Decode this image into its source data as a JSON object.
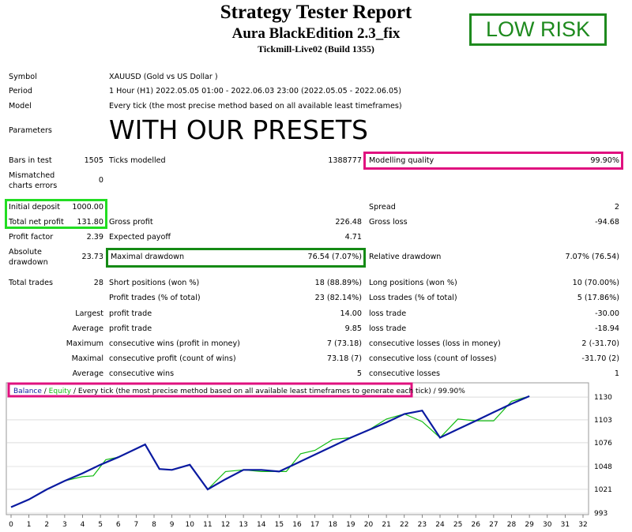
{
  "header": {
    "title": "Strategy Tester Report",
    "ea_name": "Aura BlackEdition 2.3_fix",
    "server": "Tickmill-Live02 (Build 1355)",
    "risk_badge": "LOW RISK"
  },
  "info": {
    "symbol_label": "Symbol",
    "symbol_value": "XAUUSD (Gold vs US Dollar )",
    "period_label": "Period",
    "period_value": "1 Hour (H1) 2022.05.05 01:00 - 2022.06.03 23:00 (2022.05.05 - 2022.06.05)",
    "model_label": "Model",
    "model_value": "Every tick (the most precise method based on all available least timeframes)",
    "parameters_label": "Parameters",
    "parameters_value": "WITH OUR PRESETS"
  },
  "stats": {
    "bars_label": "Bars in test",
    "bars_value": "1505",
    "ticks_label": "Ticks modelled",
    "ticks_value": "1388777",
    "quality_label": "Modelling quality",
    "quality_value": "99.90%",
    "mismatched_label1": "Mismatched",
    "mismatched_label2": "charts errors",
    "mismatched_value": "0",
    "deposit_label": "Initial deposit",
    "deposit_value": "1000.00",
    "spread_label": "Spread",
    "spread_value": "2",
    "net_label": "Total net profit",
    "net_value": "131.80",
    "gross_profit_label": "Gross profit",
    "gross_profit_value": "226.48",
    "gross_loss_label": "Gross loss",
    "gross_loss_value": "-94.68",
    "pf_label": "Profit factor",
    "pf_value": "2.39",
    "payoff_label": "Expected payoff",
    "payoff_value": "4.71",
    "absdd_label1": "Absolute",
    "absdd_label2": "drawdown",
    "absdd_value": "23.73",
    "maxdd_label": "Maximal drawdown",
    "maxdd_value": "76.54 (7.07%)",
    "reldd_label": "Relative drawdown",
    "reldd_value": "7.07% (76.54)",
    "trades_label": "Total trades",
    "trades_value": "28",
    "short_label": "Short positions (won %)",
    "short_value": "18 (88.89%)",
    "long_label": "Long positions (won %)",
    "long_value": "10 (70.00%)",
    "pt_label": "Profit trades (% of total)",
    "pt_value": "23 (82.14%)",
    "lt_label": "Loss trades (% of total)",
    "lt_value": "5 (17.86%)",
    "largest_label": "Largest",
    "lp_label": "profit trade",
    "lp_value": "14.00",
    "ll_label": "loss trade",
    "ll_value": "-30.00",
    "average_label": "Average",
    "ap_label": "profit trade",
    "ap_value": "9.85",
    "al_label": "loss trade",
    "al_value": "-18.94",
    "maximum_label": "Maximum",
    "mcw_label": "consecutive wins (profit in money)",
    "mcw_value": "7 (73.18)",
    "mcl_label": "consecutive losses (loss in money)",
    "mcl_value": "2 (-31.70)",
    "maximal_label": "Maximal",
    "mcp_label": "consecutive profit (count of wins)",
    "mcp_value": "73.18 (7)",
    "mcll_label": "consecutive loss (count of losses)",
    "mcll_value": "-31.70 (2)",
    "average2_label": "Average",
    "acw_label": "consecutive wins",
    "acw_value": "5",
    "acl_label": "consecutive losses",
    "acl_value": "1"
  },
  "chart_data": {
    "type": "line",
    "legend": {
      "balance": "Balance",
      "sep": " / ",
      "equity": "Equity",
      "rest": " / Every tick (the most precise method based on all available least timeframes to generate each tick) / 99.90%"
    },
    "x_ticks": [
      0,
      1,
      2,
      3,
      4,
      5,
      6,
      7,
      8,
      9,
      10,
      11,
      12,
      13,
      14,
      15,
      16,
      17,
      18,
      19,
      20,
      21,
      22,
      23,
      24,
      25,
      26,
      27,
      28,
      29,
      30,
      31,
      32
    ],
    "y_ticks": [
      993,
      1021,
      1048,
      1076,
      1103,
      1130
    ],
    "xlim": [
      0,
      32
    ],
    "ylim": [
      993,
      1144
    ],
    "colors": {
      "balance": "#0a1aa0",
      "equity": "#11bb11",
      "grid": "#c8c8c8"
    },
    "series": [
      {
        "name": "Balance",
        "points": [
          [
            0,
            1000
          ],
          [
            1,
            1009
          ],
          [
            2,
            1021
          ],
          [
            3,
            1031
          ],
          [
            4,
            1040
          ],
          [
            5,
            1050
          ],
          [
            6,
            1059
          ],
          [
            7,
            1069
          ],
          [
            7.5,
            1074
          ],
          [
            8.3,
            1045
          ],
          [
            9,
            1044
          ],
          [
            10,
            1050
          ],
          [
            11,
            1021
          ],
          [
            12,
            1033
          ],
          [
            13,
            1044
          ],
          [
            14,
            1044
          ],
          [
            15,
            1042
          ],
          [
            16,
            1052
          ],
          [
            17,
            1062
          ],
          [
            18,
            1072
          ],
          [
            19,
            1082
          ],
          [
            20,
            1091
          ],
          [
            21,
            1100
          ],
          [
            22,
            1110
          ],
          [
            23,
            1114
          ],
          [
            24,
            1082
          ],
          [
            25,
            1092
          ],
          [
            26,
            1102
          ],
          [
            27,
            1112
          ],
          [
            28,
            1122
          ],
          [
            29,
            1131
          ]
        ]
      },
      {
        "name": "Equity",
        "points": [
          [
            0,
            1000
          ],
          [
            1,
            1009
          ],
          [
            2,
            1021
          ],
          [
            3,
            1031
          ],
          [
            4,
            1036
          ],
          [
            4.6,
            1037
          ],
          [
            5.3,
            1056
          ],
          [
            6,
            1059
          ],
          [
            7,
            1069
          ],
          [
            7.5,
            1074
          ],
          [
            8.3,
            1045
          ],
          [
            9,
            1044
          ],
          [
            10,
            1050
          ],
          [
            11,
            1021
          ],
          [
            12,
            1042
          ],
          [
            13,
            1044
          ],
          [
            14,
            1042
          ],
          [
            15,
            1042
          ],
          [
            15.4,
            1042
          ],
          [
            16.2,
            1063
          ],
          [
            17,
            1067
          ],
          [
            18,
            1080
          ],
          [
            19,
            1082
          ],
          [
            20,
            1091
          ],
          [
            21,
            1104
          ],
          [
            22,
            1110
          ],
          [
            23,
            1101
          ],
          [
            24,
            1082
          ],
          [
            25,
            1104
          ],
          [
            26,
            1102
          ],
          [
            27,
            1102
          ],
          [
            28,
            1125
          ],
          [
            29,
            1131
          ]
        ]
      }
    ]
  }
}
